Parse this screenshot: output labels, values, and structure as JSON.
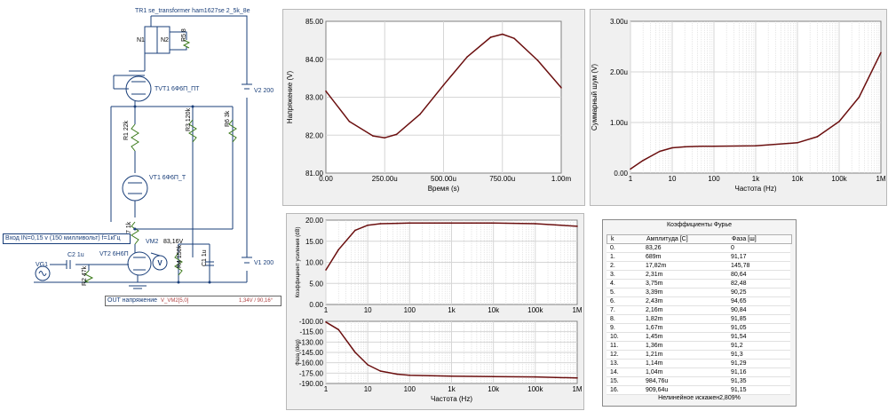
{
  "colors": {
    "curve": "#6b0f0f",
    "schematic": "#1a3f7a",
    "grid": "#d0d0d0"
  },
  "schematic": {
    "transformer_label": "TR1 se_transformer ham1627se 2_5k_8e",
    "n1": "N1",
    "n2": "N2",
    "r5": "R5 8",
    "tvt1": "TVT1 6Ф6П_ПТ",
    "v2": "V2 200",
    "r3": "R3 120k",
    "r6": "R6 3k",
    "r1": "R1 22k",
    "vt1": "VT1 6Ф6П_Т",
    "r7": "R7 1k",
    "vm2": "VM2",
    "vm2_value": "83,16V",
    "vg1": "VG1",
    "c2": "C2 1u",
    "vt2": "VT2 6Н6П",
    "r2": "R2 47k",
    "r4": "R4 150k",
    "c1": "C1 1u",
    "v1": "V1 200",
    "input_label": "Вход IN=0,15 v (150 милливольт) f=1кГц",
    "out_label": "OUT напряжение",
    "out_probe": "V_VM2[5,0]",
    "out_value": "1,34V / 90,16°"
  },
  "chart_data": [
    {
      "type": "line",
      "id": "time",
      "xlabel": "Время (s)",
      "ylabel": "Напряжение (V)",
      "xlim": [
        0,
        1.0
      ],
      "ylim": [
        81.0,
        85.0
      ],
      "xticks": [
        "0.00",
        "250.00u",
        "500.00u",
        "750.00u",
        "1.00m"
      ],
      "yticks": [
        "81.00",
        "82.00",
        "83.00",
        "84.00",
        "85.00"
      ],
      "x": [
        0,
        0.1,
        0.2,
        0.25,
        0.3,
        0.4,
        0.5,
        0.6,
        0.7,
        0.75,
        0.8,
        0.9,
        1.0
      ],
      "y": [
        83.16,
        82.36,
        81.98,
        81.93,
        82.02,
        82.55,
        83.32,
        84.06,
        84.58,
        84.66,
        84.55,
        83.97,
        83.25
      ]
    },
    {
      "type": "line",
      "id": "noise",
      "xscale": "log",
      "xlabel": "Частота (Hz)",
      "ylabel": "Суммарный шум (V)",
      "xlim": [
        1,
        1000000
      ],
      "ylim": [
        0,
        3.0
      ],
      "xticks": [
        "1",
        "10",
        "100",
        "1k",
        "10k",
        "100k",
        "1M"
      ],
      "yticks": [
        "0.00",
        "1.00u",
        "2.00u",
        "3.00u"
      ],
      "x": [
        1,
        2,
        5,
        10,
        20,
        50,
        100,
        1000,
        10000,
        30000,
        100000,
        300000,
        1000000
      ],
      "y": [
        0.08,
        0.25,
        0.43,
        0.5,
        0.52,
        0.53,
        0.53,
        0.54,
        0.6,
        0.72,
        1.02,
        1.5,
        2.38
      ]
    },
    {
      "type": "line",
      "id": "gain",
      "xscale": "log",
      "xlabel": "",
      "ylabel": "Коэффициент усиления (dB)",
      "xlim": [
        1,
        1000000
      ],
      "ylim": [
        0,
        20
      ],
      "xticks": [
        "1",
        "10",
        "100",
        "1k",
        "10k",
        "100k",
        "1M"
      ],
      "yticks": [
        "0.00",
        "5.00",
        "10.00",
        "15.00",
        "20.00"
      ],
      "x": [
        1,
        2,
        5,
        10,
        20,
        50,
        100,
        1000,
        10000,
        100000,
        1000000
      ],
      "y": [
        8.2,
        13.0,
        17.6,
        18.8,
        19.15,
        19.25,
        19.3,
        19.3,
        19.3,
        19.15,
        18.55
      ]
    },
    {
      "type": "line",
      "id": "phase",
      "xscale": "log",
      "xlabel": "Частота (Hz)",
      "ylabel": "Фаза (deg)",
      "xlim": [
        1,
        1000000
      ],
      "ylim": [
        -190,
        -100
      ],
      "xticks": [
        "1",
        "10",
        "100",
        "1k",
        "10k",
        "100k",
        "1M"
      ],
      "yticks": [
        "-100.00",
        "-115.00",
        "-130.00",
        "-145.00",
        "-160.00",
        "-175.00",
        "-190.00"
      ],
      "x": [
        1,
        2,
        5,
        10,
        20,
        50,
        100,
        1000,
        10000,
        100000,
        1000000
      ],
      "y": [
        -101,
        -112,
        -145,
        -163,
        -172,
        -176.5,
        -178,
        -179.5,
        -180,
        -180.5,
        -182
      ]
    }
  ],
  "fourier": {
    "title": "Коэффициенты Фурье",
    "headers": [
      "k",
      "Амплитуда [C]",
      "Фаза [ш]"
    ],
    "rows": [
      [
        "0.",
        "83,26",
        "0"
      ],
      [
        "1.",
        "689m",
        "91,17"
      ],
      [
        "2.",
        "17,82m",
        "145,78"
      ],
      [
        "3.",
        "2,31m",
        "80,64"
      ],
      [
        "4.",
        "3,75m",
        "82,48"
      ],
      [
        "5.",
        "3,39m",
        "90,25"
      ],
      [
        "6.",
        "2,43m",
        "94,65"
      ],
      [
        "7.",
        "2,16m",
        "90,84"
      ],
      [
        "8.",
        "1,82m",
        "91,85"
      ],
      [
        "9.",
        "1,67m",
        "91,05"
      ],
      [
        "10.",
        "1,45m",
        "91,54"
      ],
      [
        "11.",
        "1,36m",
        "91,2"
      ],
      [
        "12.",
        "1,21m",
        "91,3"
      ],
      [
        "13.",
        "1,14m",
        "91,29"
      ],
      [
        "14.",
        "1,04m",
        "91,16"
      ],
      [
        "15.",
        "984,76u",
        "91,35"
      ],
      [
        "16.",
        "909,64u",
        "91,15"
      ]
    ],
    "distortion": "Нелинейное искажен2,809%"
  }
}
